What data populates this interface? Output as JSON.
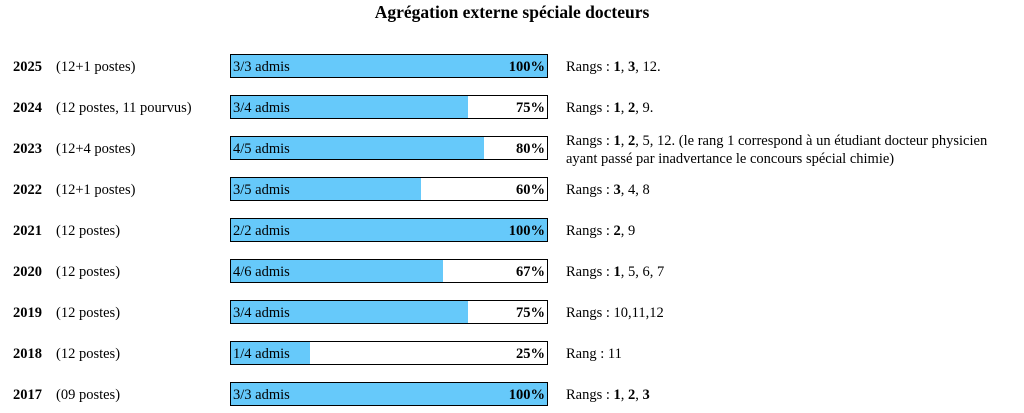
{
  "title": "Agrégation externe spéciale docteurs",
  "rows": [
    {
      "year": "2025",
      "postes": "(12+1 postes)",
      "admis": "3/3 admis",
      "pct": "100%",
      "fill": 1.0,
      "rangs": [
        {
          "t": "Rangs : "
        },
        {
          "t": "1",
          "b": true
        },
        {
          "t": ", "
        },
        {
          "t": "3",
          "b": true
        },
        {
          "t": ", 12."
        }
      ]
    },
    {
      "year": "2024",
      "postes": "(12 postes, 11 pourvus)",
      "admis": "3/4 admis",
      "pct": "75%",
      "fill": 0.75,
      "rangs": [
        {
          "t": "Rangs : "
        },
        {
          "t": "1",
          "b": true
        },
        {
          "t": ", "
        },
        {
          "t": "2",
          "b": true
        },
        {
          "t": ", 9."
        }
      ]
    },
    {
      "year": "2023",
      "postes": "(12+4 postes)",
      "admis": "4/5 admis",
      "pct": "80%",
      "fill": 0.8,
      "two_lines": true,
      "rangs": [
        {
          "t": "Rangs : "
        },
        {
          "t": "1",
          "b": true
        },
        {
          "t": ", "
        },
        {
          "t": "2",
          "b": true
        },
        {
          "t": ", 5, 12. (le rang 1 correspond à un étudiant docteur physicien ayant passé par inadvertance le concours spécial chimie)"
        }
      ]
    },
    {
      "year": "2022",
      "postes": "(12+1 postes)",
      "admis": "3/5 admis",
      "pct": "60%",
      "fill": 0.6,
      "rangs": [
        {
          "t": "Rangs : "
        },
        {
          "t": "3",
          "b": true
        },
        {
          "t": ", 4, 8"
        }
      ]
    },
    {
      "year": "2021",
      "postes": "(12 postes)",
      "admis": "2/2 admis",
      "pct": "100%",
      "fill": 1.0,
      "rangs": [
        {
          "t": "Rangs : "
        },
        {
          "t": "2",
          "b": true
        },
        {
          "t": ", 9"
        }
      ]
    },
    {
      "year": "2020",
      "postes": "(12 postes)",
      "admis": "4/6 admis",
      "pct": "67%",
      "fill": 0.67,
      "rangs": [
        {
          "t": "Rangs : "
        },
        {
          "t": "1",
          "b": true
        },
        {
          "t": ", 5, 6, 7"
        }
      ]
    },
    {
      "year": "2019",
      "postes": "(12 postes)",
      "admis": "3/4 admis",
      "pct": "75%",
      "fill": 0.75,
      "rangs": [
        {
          "t": "Rangs : 10,11,12"
        }
      ]
    },
    {
      "year": "2018",
      "postes": "(12 postes)",
      "admis": "1/4 admis",
      "pct": "25%",
      "fill": 0.25,
      "rangs": [
        {
          "t": "Rang : 11"
        }
      ]
    },
    {
      "year": "2017",
      "postes": "(09 postes)",
      "admis": "3/3 admis",
      "pct": "100%",
      "fill": 1.0,
      "rangs": [
        {
          "t": "Rangs : "
        },
        {
          "t": "1",
          "b": true
        },
        {
          "t": ", "
        },
        {
          "t": "2",
          "b": true
        },
        {
          "t": ", "
        },
        {
          "t": "3",
          "b": true
        }
      ]
    }
  ]
}
